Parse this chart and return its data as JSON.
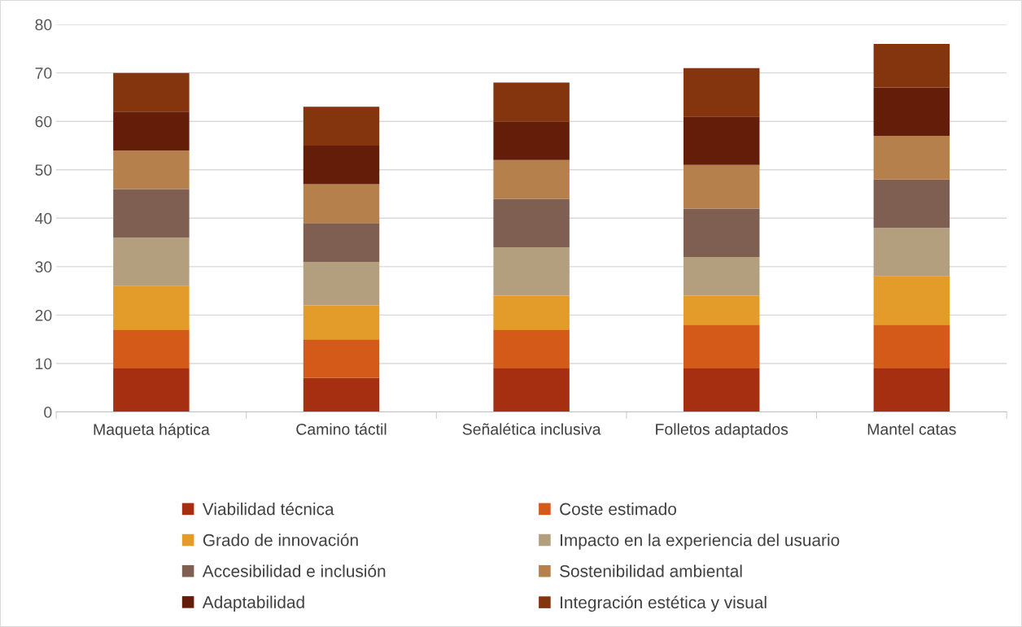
{
  "chart_data": {
    "type": "bar",
    "stacked": true,
    "categories": [
      "Maqueta háptica",
      "Camino táctil",
      "Señalética inclusiva",
      "Folletos adaptados",
      "Mantel catas"
    ],
    "series": [
      {
        "name": "Viabilidad técnica",
        "color": "#a52f10",
        "values": [
          9,
          7,
          9,
          9,
          9
        ]
      },
      {
        "name": "Coste estimado",
        "color": "#d45a1a",
        "values": [
          8,
          8,
          8,
          9,
          9
        ]
      },
      {
        "name": "Grado de innovación",
        "color": "#e39b2a",
        "values": [
          9,
          7,
          7,
          6,
          10
        ]
      },
      {
        "name": "Impacto en la experiencia del usuario",
        "color": "#b39e7e",
        "values": [
          10,
          9,
          10,
          8,
          10
        ]
      },
      {
        "name": "Accesibilidad e inclusión",
        "color": "#7f5f51",
        "values": [
          10,
          8,
          10,
          10,
          10
        ]
      },
      {
        "name": "Sostenibilidad ambiental",
        "color": "#b5804c",
        "values": [
          8,
          8,
          8,
          9,
          9
        ]
      },
      {
        "name": "Adaptabilidad",
        "color": "#631d09",
        "values": [
          8,
          8,
          8,
          10,
          10
        ]
      },
      {
        "name": "Integración estética y visual",
        "color": "#84350e",
        "values": [
          8,
          8,
          8,
          10,
          9
        ]
      }
    ],
    "ylim": [
      0,
      80
    ],
    "yticks": [
      0,
      10,
      20,
      30,
      40,
      50,
      60,
      70,
      80
    ],
    "grid": "y",
    "legend": "bottom"
  }
}
